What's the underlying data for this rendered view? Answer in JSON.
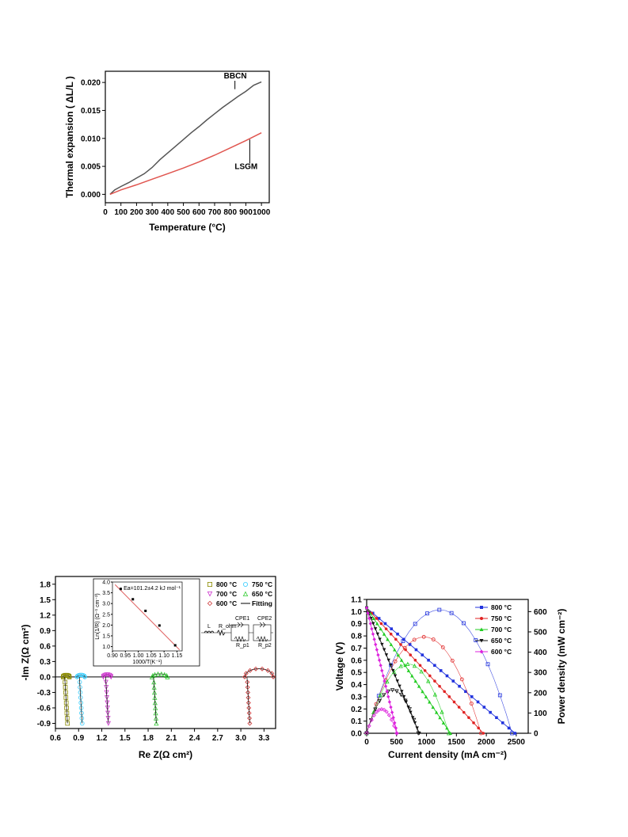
{
  "chart_data": [
    {
      "type": "line",
      "xlabel": "Temperature (°C)",
      "ylabel": "Thermal expansion ( ΔL/L )",
      "xlim": [
        0,
        1050
      ],
      "ylim": [
        -0.0015,
        0.022
      ],
      "x_ticks": [
        "0",
        "100",
        "200",
        "300",
        "400",
        "500",
        "600",
        "700",
        "800",
        "900",
        "1000"
      ],
      "y_ticks": [
        "0.000",
        "0.005",
        "0.010",
        "0.015",
        "0.020"
      ],
      "series": [
        {
          "name": "BBCN",
          "color": "#555555",
          "x": [
            30,
            60,
            100,
            150,
            200,
            250,
            300,
            350,
            400,
            450,
            500,
            550,
            600,
            650,
            700,
            750,
            800,
            850,
            900,
            950,
            1000
          ],
          "y": [
            0.0,
            0.0008,
            0.0014,
            0.0021,
            0.0029,
            0.0037,
            0.0048,
            0.0062,
            0.0074,
            0.0086,
            0.0098,
            0.011,
            0.0121,
            0.0133,
            0.0144,
            0.0155,
            0.0165,
            0.0175,
            0.0184,
            0.0195,
            0.0201
          ]
        },
        {
          "name": "LSGM",
          "color": "#e0554f",
          "x": [
            30,
            100,
            200,
            300,
            400,
            500,
            600,
            700,
            800,
            900,
            1000
          ],
          "y": [
            0.0,
            0.0008,
            0.0017,
            0.0027,
            0.0037,
            0.0047,
            0.0058,
            0.007,
            0.0083,
            0.0096,
            0.011
          ]
        }
      ],
      "annotations": [
        {
          "text": "BBCN",
          "x": 820,
          "y": 0.0188
        },
        {
          "text": "LSGM",
          "x": 920,
          "y": 0.0088
        }
      ]
    },
    {
      "type": "scatter",
      "xlabel": "Re Z(Ω cm²)",
      "ylabel": "-Im Z(Ω cm²)",
      "xlim": [
        0.6,
        3.45
      ],
      "ylim": [
        -1.0,
        1.95
      ],
      "x_ticks": [
        "0.6",
        "0.9",
        "1.2",
        "1.5",
        "1.8",
        "2.1",
        "2.4",
        "2.7",
        "3.0",
        "3.3"
      ],
      "y_ticks": [
        "-0.9",
        "-0.6",
        "-0.3",
        "0.0",
        "0.3",
        "0.6",
        "0.9",
        "1.2",
        "1.5",
        "1.8"
      ],
      "legend": [
        {
          "label": "800 °C",
          "color": "#8a8a00",
          "marker": "square"
        },
        {
          "label": "750 °C",
          "color": "#33ccff",
          "marker": "circle"
        },
        {
          "label": "700 °C",
          "color": "#cc33cc",
          "marker": "triangle-down"
        },
        {
          "label": "650 °C",
          "color": "#33cc33",
          "marker": "triangle-up"
        },
        {
          "label": "600 °C",
          "color": "#cc3333",
          "marker": "diamond"
        },
        {
          "label": "Fitting",
          "color": "#000000",
          "marker": "line"
        }
      ],
      "series": [
        {
          "name": "800 °C",
          "color": "#8a8a00",
          "marker": "square",
          "arc": [
            0.7,
            0.78,
            0.035
          ],
          "tail_x": 0.72
        },
        {
          "name": "750 °C",
          "color": "#33ccff",
          "marker": "circle",
          "arc": [
            0.88,
            0.98,
            0.04
          ],
          "tail_x": 0.91
        },
        {
          "name": "700 °C",
          "color": "#cc33cc",
          "marker": "triangle-down",
          "arc": [
            1.22,
            1.32,
            0.045
          ],
          "tail_x": 1.25
        },
        {
          "name": "650 °C",
          "color": "#33cc33",
          "marker": "triangle-up",
          "arc": [
            1.85,
            2.05,
            0.06
          ],
          "tail_x": 1.87
        },
        {
          "name": "600 °C",
          "color": "#cc3333",
          "marker": "diamond",
          "arc": [
            3.05,
            3.42,
            0.16
          ],
          "tail_x": 3.08
        }
      ],
      "inset": {
        "title": "Ea=101.2±4.2 kJ mol⁻¹",
        "xlabel": "1000/T(K⁻¹)",
        "ylabel": "Ln(1/R) (Ω⁻¹ cm⁻²)",
        "xlim": [
          0.9,
          1.17
        ],
        "ylim": [
          0.8,
          4.0
        ],
        "x_ticks": [
          "0.90",
          "0.95",
          "1.00",
          "1.05",
          "1.10",
          "1.15"
        ],
        "y_ticks": [
          "1.0",
          "1.5",
          "2.0",
          "2.5",
          "3.0",
          "3.5",
          "4.0"
        ],
        "x": [
          0.932,
          0.979,
          1.028,
          1.082,
          1.143
        ],
        "y": [
          3.68,
          3.2,
          2.66,
          1.98,
          1.06
        ],
        "fit_color": "#e06060"
      },
      "circuit_labels": [
        "L",
        "R_ohm",
        "CPE1",
        "R_p1",
        "CPE2",
        "R_p2"
      ]
    },
    {
      "type": "line",
      "xlabel": "Current density (mA cm⁻²)",
      "ylabel": "Voltage (V)",
      "y2label": "Power density (mW cm⁻²)",
      "xlim": [
        0,
        2700
      ],
      "ylim": [
        0.0,
        1.1
      ],
      "y2lim": [
        0,
        660
      ],
      "x_ticks": [
        "0",
        "500",
        "1000",
        "1500",
        "2000",
        "2500"
      ],
      "y_ticks": [
        "0.0",
        "0.1",
        "0.2",
        "0.3",
        "0.4",
        "0.5",
        "0.6",
        "0.7",
        "0.8",
        "0.9",
        "1.0",
        "1.1"
      ],
      "y2_ticks": [
        "0",
        "100",
        "200",
        "300",
        "400",
        "500",
        "600"
      ],
      "series": [
        {
          "name": "800 °C",
          "color": "#2233dd",
          "marker": "square",
          "ocv": 1.03,
          "isc": 2480,
          "pmax": 615
        },
        {
          "name": "750 °C",
          "color": "#e02222",
          "marker": "circle",
          "ocv": 1.03,
          "isc": 1950,
          "pmax": 480
        },
        {
          "name": "700 °C",
          "color": "#22cc22",
          "marker": "triangle-up",
          "ocv": 1.03,
          "isc": 1400,
          "pmax": 345
        },
        {
          "name": "650 °C",
          "color": "#111111",
          "marker": "triangle-down",
          "ocv": 1.03,
          "isc": 880,
          "pmax": 215
        },
        {
          "name": "600 °C",
          "color": "#dd22dd",
          "marker": "diamond",
          "ocv": 1.03,
          "isc": 510,
          "pmax": 120
        }
      ]
    }
  ]
}
